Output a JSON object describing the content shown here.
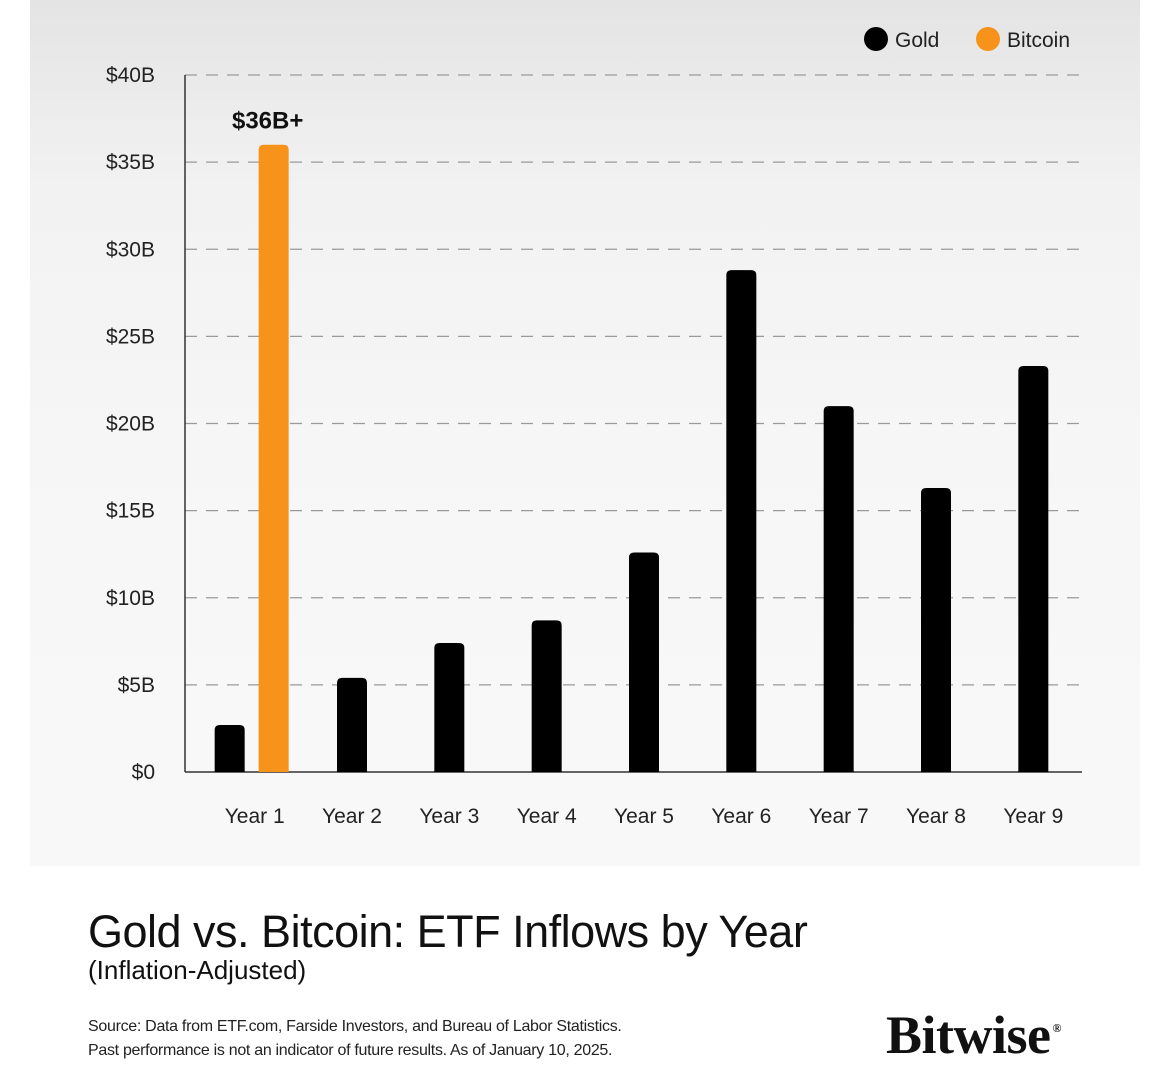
{
  "chart_data": {
    "type": "bar",
    "title": "Gold vs. Bitcoin: ETF Inflows by Year",
    "subtitle": "(Inflation-Adjusted)",
    "categories": [
      "Year 1",
      "Year 2",
      "Year 3",
      "Year 4",
      "Year 5",
      "Year 6",
      "Year 7",
      "Year 8",
      "Year 9"
    ],
    "series": [
      {
        "name": "Gold",
        "color": "#000000",
        "values": [
          2.7,
          5.4,
          7.4,
          8.7,
          12.6,
          28.8,
          21.0,
          16.3,
          23.3
        ]
      },
      {
        "name": "Bitcoin",
        "color": "#f7931a",
        "values": [
          36,
          null,
          null,
          null,
          null,
          null,
          null,
          null,
          null
        ]
      }
    ],
    "annotations": [
      {
        "series": "Bitcoin",
        "category": "Year 1",
        "text": "$36B+"
      }
    ],
    "yticks": [
      0,
      5,
      10,
      15,
      20,
      25,
      30,
      35,
      40
    ],
    "ytick_labels": [
      "$0",
      "$5B",
      "$10B",
      "$15B",
      "$20B",
      "$25B",
      "$30B",
      "$35B",
      "$40B"
    ],
    "ylim": [
      0,
      40
    ],
    "xlabel": "",
    "ylabel": "",
    "grid": true,
    "legend_position": "top-right"
  },
  "source_line1": "Source: Data from ETF.com, Farside Investors, and Bureau of Labor Statistics.",
  "source_line2": "Past performance is not an indicator of future results. As of January 10, 2025.",
  "brand": "Bitwise",
  "brand_mark": "®"
}
